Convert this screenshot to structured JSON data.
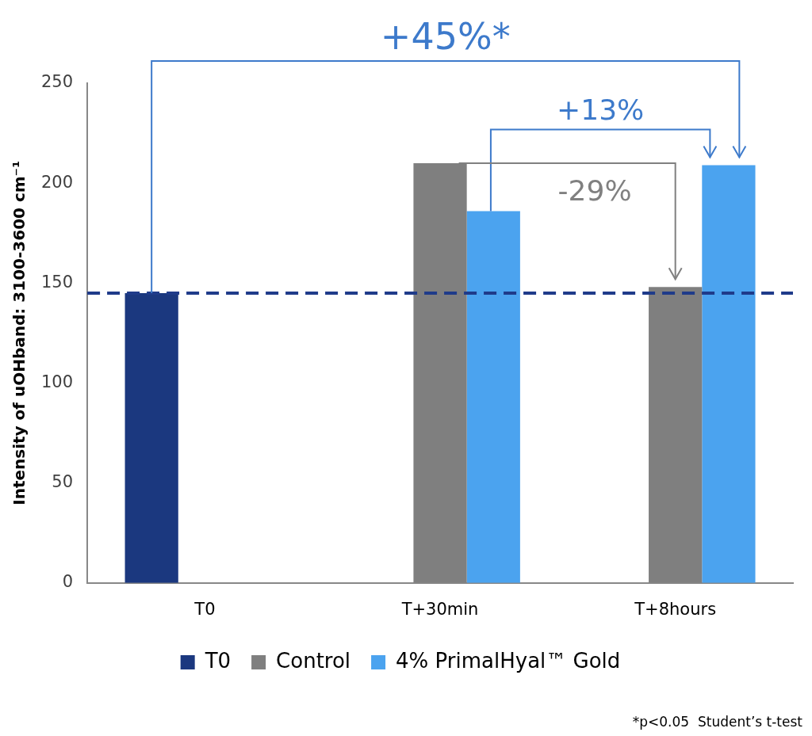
{
  "chart_data": {
    "type": "bar",
    "categories": [
      "T0",
      "T+30min",
      "T+8hours"
    ],
    "series": [
      {
        "name": "T0",
        "color": "#1b387f",
        "values": [
          145,
          null,
          null
        ]
      },
      {
        "name": "Control",
        "color": "#7f7f7f",
        "values": [
          null,
          210,
          148
        ]
      },
      {
        "name": "4% PrimalHyal™ Gold",
        "color": "#4ba3ef",
        "values": [
          null,
          186,
          209
        ]
      }
    ],
    "y_label": "Intensity of uOHband: 3100-3600 cm⁻¹",
    "ylim": [
      0,
      250
    ],
    "yticks": [
      0,
      50,
      100,
      150,
      200,
      250
    ],
    "grid": false,
    "legend": "bottom",
    "reference_line": {
      "value": 145,
      "line_style": "dashed",
      "color": "#1f3b8a"
    },
    "annotations": [
      {
        "text": "+45%*",
        "from": {
          "category": "T0",
          "series": "T0"
        },
        "to": {
          "category": "T+8hours",
          "series": "4% PrimalHyal™ Gold"
        },
        "color": "#3d7acb"
      },
      {
        "text": "+13%",
        "from": {
          "category": "T+30min",
          "series": "4% PrimalHyal™ Gold"
        },
        "to": {
          "category": "T+8hours",
          "series": "4% PrimalHyal™ Gold"
        },
        "color": "#3d7acb"
      },
      {
        "text": "-29%",
        "from": {
          "category": "T+30min",
          "series": "Control"
        },
        "to": {
          "category": "T+8hours",
          "series": "Control"
        },
        "color": "#808080"
      }
    ],
    "footnote": "*p<0.05  Student’s t-test"
  }
}
